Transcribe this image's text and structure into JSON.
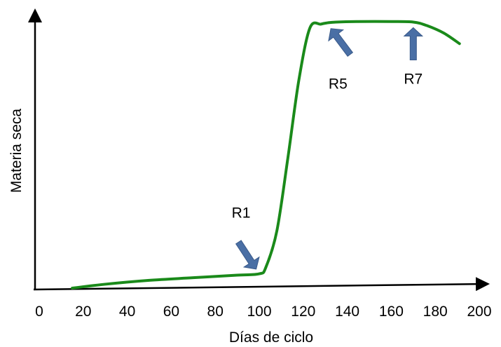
{
  "chart_data": {
    "type": "line",
    "xlabel": "Días de  ciclo",
    "ylabel": "Materia seca",
    "xlim": [
      0,
      200
    ],
    "ylim": [
      0,
      100
    ],
    "x_ticks": [
      "0",
      "20",
      "40",
      "60",
      "80",
      "100",
      "120",
      "140",
      "160",
      "180",
      "200"
    ],
    "y_ticks_shown": false,
    "grid": false,
    "line_color": "#1a8a1a",
    "arrow_color": "#4a6fa5",
    "series": [
      {
        "x": [
          15,
          30,
          50,
          70,
          90,
          100,
          103,
          108,
          113,
          118,
          123,
          128,
          131,
          135,
          145,
          160,
          170,
          176,
          184,
          191
        ],
        "y": [
          0,
          1.5,
          3,
          4,
          5,
          5.5,
          8,
          22,
          50,
          80,
          100,
          101.5,
          102,
          102.3,
          102.5,
          102.5,
          102.3,
          101,
          98,
          94
        ]
      }
    ],
    "annotations": [
      {
        "label": "R1",
        "x": 100,
        "y": 5.5,
        "direction": "down-right"
      },
      {
        "label": "R5",
        "x": 131,
        "y": 101.5,
        "direction": "up-left"
      },
      {
        "label": "R7",
        "x": 170,
        "y": 102.3,
        "direction": "up"
      }
    ]
  }
}
